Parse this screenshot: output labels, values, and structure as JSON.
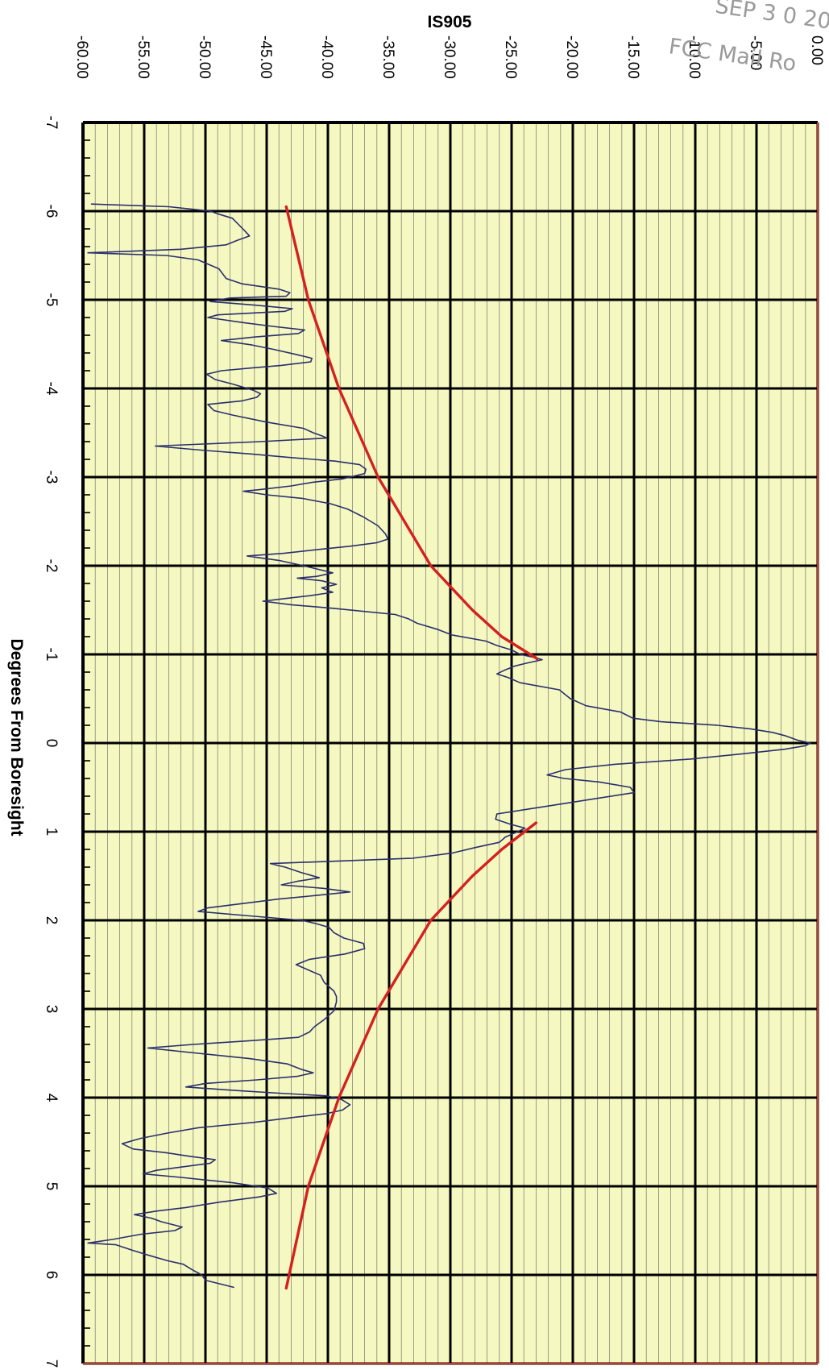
{
  "chart_data": {
    "type": "line",
    "orientation": "rotated-90-clockwise",
    "title": "IS905",
    "xlabel": "Degrees From Boresight",
    "ylabel": "",
    "xlim": [
      -7,
      7
    ],
    "ylim": [
      -60,
      0
    ],
    "x_ticks": [
      "-7",
      "-6",
      "-5",
      "-4",
      "-3",
      "-2",
      "-1",
      "0",
      "1",
      "2",
      "3",
      "4",
      "5",
      "6",
      "7"
    ],
    "y_ticks": [
      "-60.00",
      "-55.00",
      "-50.00",
      "-45.00",
      "-40.00",
      "-35.00",
      "-30.00",
      "-25.00",
      "-20.00",
      "-15.00",
      "-10.00",
      "-5.00",
      "0.00"
    ],
    "grid": true,
    "plot_background": "#f5f8c0",
    "series": [
      {
        "color": "#2a2f6e",
        "points": [
          [
            -6.08,
            -59.3
          ],
          [
            -6.05,
            -53.0
          ],
          [
            -6.0,
            -49.6
          ],
          [
            -5.97,
            -49.0
          ],
          [
            -5.92,
            -47.8
          ],
          [
            -5.85,
            -47.3
          ],
          [
            -5.78,
            -46.8
          ],
          [
            -5.72,
            -46.4
          ],
          [
            -5.67,
            -47.4
          ],
          [
            -5.62,
            -48.3
          ],
          [
            -5.57,
            -52.0
          ],
          [
            -5.53,
            -59.6
          ],
          [
            -5.5,
            -53.2
          ],
          [
            -5.45,
            -50.6
          ],
          [
            -5.35,
            -48.9
          ],
          [
            -5.24,
            -48.3
          ],
          [
            -5.18,
            -47.0
          ],
          [
            -5.12,
            -44.0
          ],
          [
            -5.08,
            -43.1
          ],
          [
            -5.04,
            -43.4
          ],
          [
            -5.02,
            -48.0
          ],
          [
            -4.98,
            -49.6
          ],
          [
            -4.94,
            -46.0
          ],
          [
            -4.9,
            -42.9
          ],
          [
            -4.87,
            -43.5
          ],
          [
            -4.83,
            -49.0
          ],
          [
            -4.8,
            -49.8
          ],
          [
            -4.74,
            -46.8
          ],
          [
            -4.7,
            -44.5
          ],
          [
            -4.66,
            -41.9
          ],
          [
            -4.62,
            -42.4
          ],
          [
            -4.58,
            -46.0
          ],
          [
            -4.54,
            -48.7
          ],
          [
            -4.49,
            -46.2
          ],
          [
            -4.44,
            -44.4
          ],
          [
            -4.38,
            -42.5
          ],
          [
            -4.34,
            -41.3
          ],
          [
            -4.3,
            -41.4
          ],
          [
            -4.26,
            -43.8
          ],
          [
            -4.23,
            -46.3
          ],
          [
            -4.2,
            -48.7
          ],
          [
            -4.16,
            -49.9
          ],
          [
            -4.1,
            -49.2
          ],
          [
            -4.05,
            -47.8
          ],
          [
            -3.98,
            -46.1
          ],
          [
            -3.94,
            -45.5
          ],
          [
            -3.9,
            -45.8
          ],
          [
            -3.86,
            -47.0
          ],
          [
            -3.82,
            -49.8
          ],
          [
            -3.75,
            -49.3
          ],
          [
            -3.7,
            -47.8
          ],
          [
            -3.62,
            -45.0
          ],
          [
            -3.55,
            -42.0
          ],
          [
            -3.5,
            -41.2
          ],
          [
            -3.46,
            -40.4
          ],
          [
            -3.44,
            -40.1
          ],
          [
            -3.4,
            -45.5
          ],
          [
            -3.35,
            -54.1
          ],
          [
            -3.3,
            -50.0
          ],
          [
            -3.26,
            -46.2
          ],
          [
            -3.22,
            -43.0
          ],
          [
            -3.18,
            -39.4
          ],
          [
            -3.14,
            -37.4
          ],
          [
            -3.09,
            -36.9
          ],
          [
            -3.04,
            -37.0
          ],
          [
            -2.98,
            -38.8
          ],
          [
            -2.94,
            -41.3
          ],
          [
            -2.9,
            -43.0
          ],
          [
            -2.86,
            -45.5
          ],
          [
            -2.84,
            -46.9
          ],
          [
            -2.8,
            -45.0
          ],
          [
            -2.76,
            -42.1
          ],
          [
            -2.7,
            -39.8
          ],
          [
            -2.64,
            -38.4
          ],
          [
            -2.55,
            -37.1
          ],
          [
            -2.45,
            -35.9
          ],
          [
            -2.36,
            -35.3
          ],
          [
            -2.3,
            -35.1
          ],
          [
            -2.26,
            -36.0
          ],
          [
            -2.22,
            -38.2
          ],
          [
            -2.18,
            -41.0
          ],
          [
            -2.14,
            -43.6
          ],
          [
            -2.11,
            -46.6
          ],
          [
            -2.06,
            -44.0
          ],
          [
            -2.0,
            -42.0
          ],
          [
            -1.96,
            -40.8
          ],
          [
            -1.92,
            -39.6
          ],
          [
            -1.88,
            -40.9
          ],
          [
            -1.86,
            -42.5
          ],
          [
            -1.83,
            -40.5
          ],
          [
            -1.79,
            -39.3
          ],
          [
            -1.75,
            -40.5
          ],
          [
            -1.7,
            -39.6
          ],
          [
            -1.66,
            -41.6
          ],
          [
            -1.62,
            -44.1
          ],
          [
            -1.6,
            -45.3
          ],
          [
            -1.56,
            -43.0
          ],
          [
            -1.52,
            -39.6
          ],
          [
            -1.45,
            -34.5
          ],
          [
            -1.4,
            -33.4
          ],
          [
            -1.35,
            -32.7
          ],
          [
            -1.28,
            -31.0
          ],
          [
            -1.22,
            -29.9
          ],
          [
            -1.15,
            -27.1
          ],
          [
            -1.1,
            -26.2
          ],
          [
            -1.05,
            -25.0
          ],
          [
            -1.0,
            -24.3
          ],
          [
            -0.96,
            -23.0
          ],
          [
            -0.94,
            -22.5
          ],
          [
            -0.9,
            -23.8
          ],
          [
            -0.87,
            -24.7
          ],
          [
            -0.82,
            -25.6
          ],
          [
            -0.78,
            -26.2
          ],
          [
            -0.74,
            -25.3
          ],
          [
            -0.68,
            -24.3
          ],
          [
            -0.6,
            -21.1
          ],
          [
            -0.5,
            -20.2
          ],
          [
            -0.42,
            -18.9
          ],
          [
            -0.35,
            -16.1
          ],
          [
            -0.28,
            -15.1
          ],
          [
            -0.24,
            -12.8
          ],
          [
            -0.2,
            -8.2
          ],
          [
            -0.16,
            -5.5
          ],
          [
            -0.12,
            -3.7
          ],
          [
            -0.08,
            -2.6
          ],
          [
            -0.03,
            -1.6
          ],
          [
            0.0,
            -0.6
          ],
          [
            0.03,
            -1.0
          ],
          [
            0.07,
            -2.7
          ],
          [
            0.12,
            -6.0
          ],
          [
            0.18,
            -10.3
          ],
          [
            0.24,
            -16.6
          ],
          [
            0.3,
            -20.6
          ],
          [
            0.36,
            -22.1
          ],
          [
            0.4,
            -20.7
          ],
          [
            0.44,
            -17.8
          ],
          [
            0.5,
            -15.3
          ],
          [
            0.56,
            -15.0
          ],
          [
            0.62,
            -17.8
          ],
          [
            0.68,
            -20.6
          ],
          [
            0.74,
            -23.4
          ],
          [
            0.8,
            -26.2
          ],
          [
            0.86,
            -26.3
          ],
          [
            0.92,
            -25.0
          ],
          [
            0.96,
            -23.9
          ],
          [
            1.0,
            -24.5
          ],
          [
            1.06,
            -25.5
          ],
          [
            1.12,
            -26.0
          ],
          [
            1.18,
            -28.0
          ],
          [
            1.24,
            -29.8
          ],
          [
            1.3,
            -33.1
          ],
          [
            1.33,
            -38.9
          ],
          [
            1.36,
            -44.7
          ],
          [
            1.4,
            -43.5
          ],
          [
            1.46,
            -42.2
          ],
          [
            1.52,
            -40.7
          ],
          [
            1.56,
            -42.5
          ],
          [
            1.6,
            -43.8
          ],
          [
            1.64,
            -40.3
          ],
          [
            1.68,
            -38.2
          ],
          [
            1.72,
            -41.0
          ],
          [
            1.76,
            -44.0
          ],
          [
            1.82,
            -47.5
          ],
          [
            1.86,
            -49.8
          ],
          [
            1.9,
            -50.6
          ],
          [
            1.95,
            -46.4
          ],
          [
            2.0,
            -42.1
          ],
          [
            2.04,
            -40.9
          ],
          [
            2.08,
            -39.9
          ],
          [
            2.14,
            -39.5
          ],
          [
            2.2,
            -38.7
          ],
          [
            2.26,
            -37.1
          ],
          [
            2.32,
            -37.0
          ],
          [
            2.38,
            -38.6
          ],
          [
            2.44,
            -41.5
          ],
          [
            2.5,
            -42.6
          ],
          [
            2.56,
            -41.6
          ],
          [
            2.62,
            -40.6
          ],
          [
            2.7,
            -40.3
          ],
          [
            2.8,
            -39.5
          ],
          [
            2.86,
            -39.3
          ],
          [
            2.92,
            -39.3
          ],
          [
            3.02,
            -39.5
          ],
          [
            3.12,
            -40.3
          ],
          [
            3.2,
            -41.1
          ],
          [
            3.26,
            -41.5
          ],
          [
            3.32,
            -42.4
          ],
          [
            3.36,
            -46.5
          ],
          [
            3.4,
            -51.0
          ],
          [
            3.44,
            -54.7
          ],
          [
            3.5,
            -50.6
          ],
          [
            3.56,
            -46.4
          ],
          [
            3.62,
            -43.3
          ],
          [
            3.68,
            -42.2
          ],
          [
            3.72,
            -41.2
          ],
          [
            3.76,
            -42.5
          ],
          [
            3.8,
            -45.8
          ],
          [
            3.84,
            -50.0
          ],
          [
            3.88,
            -51.6
          ],
          [
            3.92,
            -47.5
          ],
          [
            3.95,
            -44.0
          ],
          [
            3.98,
            -40.1
          ],
          [
            4.02,
            -38.9
          ],
          [
            4.08,
            -38.2
          ],
          [
            4.14,
            -38.8
          ],
          [
            4.18,
            -40.1
          ],
          [
            4.22,
            -42.6
          ],
          [
            4.28,
            -46.1
          ],
          [
            4.34,
            -50.6
          ],
          [
            4.4,
            -53.1
          ],
          [
            4.46,
            -55.3
          ],
          [
            4.52,
            -56.8
          ],
          [
            4.58,
            -55.9
          ],
          [
            4.62,
            -53.3
          ],
          [
            4.66,
            -51.4
          ],
          [
            4.7,
            -49.2
          ],
          [
            4.74,
            -49.6
          ],
          [
            4.78,
            -51.8
          ],
          [
            4.82,
            -54.0
          ],
          [
            4.86,
            -55.1
          ],
          [
            4.9,
            -52.0
          ],
          [
            4.96,
            -47.8
          ],
          [
            5.02,
            -44.9
          ],
          [
            5.08,
            -44.2
          ],
          [
            5.12,
            -45.6
          ],
          [
            5.18,
            -48.9
          ],
          [
            5.24,
            -51.6
          ],
          [
            5.28,
            -54.0
          ],
          [
            5.32,
            -55.8
          ],
          [
            5.36,
            -54.4
          ],
          [
            5.4,
            -53.6
          ],
          [
            5.46,
            -51.9
          ],
          [
            5.5,
            -52.5
          ],
          [
            5.54,
            -55.2
          ],
          [
            5.6,
            -57.6
          ],
          [
            5.64,
            -59.6
          ],
          [
            5.66,
            -57.3
          ],
          [
            5.72,
            -56.0
          ],
          [
            5.78,
            -54.6
          ],
          [
            5.84,
            -53.1
          ],
          [
            5.88,
            -51.8
          ],
          [
            5.94,
            -51.1
          ],
          [
            6.0,
            -50.3
          ],
          [
            6.06,
            -50.0
          ],
          [
            6.14,
            -47.7
          ]
        ]
      },
      {
        "color": "#d42020",
        "points": [
          [
            -6.05,
            -43.4
          ],
          [
            -5.0,
            -41.6
          ],
          [
            -4.0,
            -39.1
          ],
          [
            -3.0,
            -35.9
          ],
          [
            -2.0,
            -31.6
          ],
          [
            -1.5,
            -28.2
          ],
          [
            -1.2,
            -25.8
          ],
          [
            -0.95,
            -22.9
          ]
        ]
      },
      {
        "color": "#d42020",
        "points": [
          [
            0.9,
            -23.0
          ],
          [
            1.2,
            -25.8
          ],
          [
            1.5,
            -28.2
          ],
          [
            2.0,
            -31.6
          ],
          [
            3.0,
            -35.9
          ],
          [
            4.0,
            -39.1
          ],
          [
            5.0,
            -41.6
          ],
          [
            6.15,
            -43.4
          ]
        ]
      }
    ],
    "stamp_lines": [
      "SEP 3 0 20",
      "FCC Mail Ro"
    ]
  }
}
